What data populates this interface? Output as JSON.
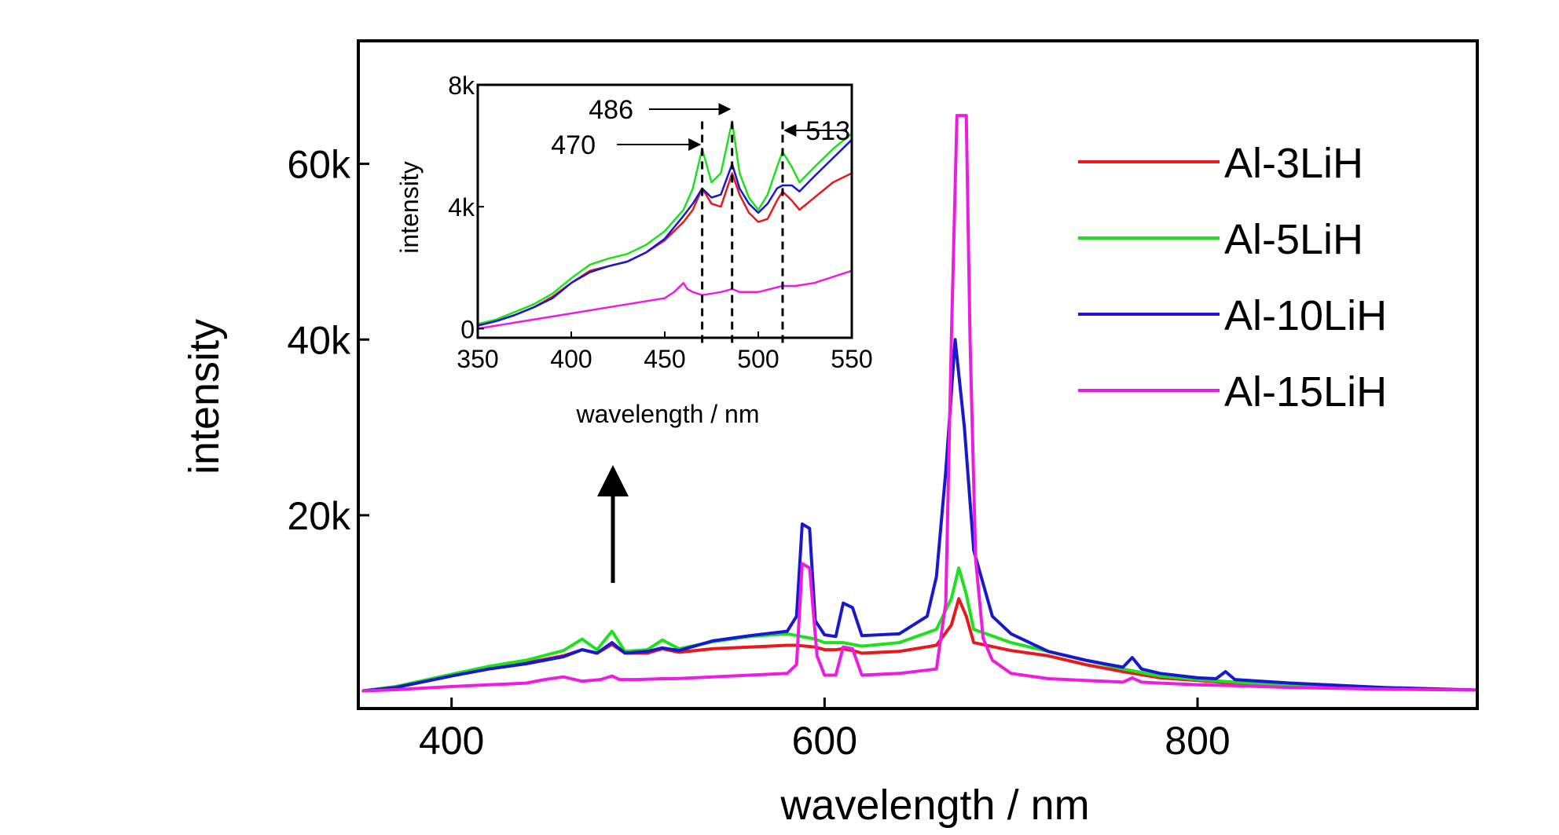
{
  "chart_data": [
    {
      "type": "line",
      "xlabel": "wavelength / nm",
      "ylabel": "intensity",
      "xlim": [
        350,
        950
      ],
      "ylim": [
        -2000,
        74000
      ],
      "xticks": [
        400,
        600,
        800
      ],
      "xtick_labels": [
        "400",
        "600",
        "800"
      ],
      "yticks": [
        20000,
        40000,
        60000
      ],
      "ytick_labels": [
        "20k",
        "40k",
        "60k"
      ],
      "grid": false,
      "legend_position": "top-right",
      "annotation": "upward arrow at ~483 nm pointing to the inset",
      "series": [
        {
          "name": "Al-3LiH",
          "color": "#e8191a",
          "x": [
            352,
            370,
            400,
            420,
            440,
            460,
            470,
            478,
            486,
            493,
            505,
            513,
            522,
            540,
            560,
            580,
            585,
            590,
            595,
            600,
            606,
            610,
            615,
            620,
            640,
            660,
            668,
            672,
            676,
            680,
            700,
            720,
            740,
            760,
            780,
            800,
            820,
            850,
            900,
            950
          ],
          "y": [
            0,
            400,
            1800,
            2600,
            3200,
            4000,
            4700,
            4300,
            5300,
            4300,
            4300,
            4800,
            4400,
            4800,
            5000,
            5200,
            5200,
            5100,
            5000,
            4700,
            4700,
            4800,
            4600,
            4300,
            4500,
            5200,
            7500,
            10500,
            8500,
            5500,
            4600,
            4000,
            3000,
            2200,
            1500,
            1200,
            900,
            600,
            300,
            100
          ]
        },
        {
          "name": "Al-5LiH",
          "color": "#1fe01f",
          "x": [
            352,
            370,
            400,
            420,
            440,
            460,
            470,
            478,
            486,
            493,
            505,
            513,
            522,
            540,
            560,
            580,
            585,
            590,
            595,
            600,
            606,
            610,
            615,
            620,
            640,
            660,
            668,
            672,
            676,
            680,
            700,
            720,
            740,
            760,
            780,
            800,
            820,
            850,
            900,
            950
          ],
          "y": [
            0,
            500,
            1900,
            2800,
            3500,
            4600,
            5900,
            4700,
            6800,
            4500,
            4700,
            5800,
            4800,
            5600,
            6200,
            6500,
            6300,
            6100,
            5900,
            5500,
            5500,
            5500,
            5300,
            5100,
            5500,
            7000,
            10500,
            14000,
            11000,
            7000,
            5500,
            4500,
            3500,
            2500,
            1700,
            1300,
            1000,
            700,
            300,
            100
          ]
        },
        {
          "name": "Al-10LiH",
          "color": "#1818d0",
          "x": [
            352,
            370,
            400,
            420,
            440,
            460,
            470,
            478,
            486,
            493,
            505,
            513,
            522,
            540,
            560,
            580,
            585,
            588,
            592,
            595,
            600,
            606,
            610,
            615,
            620,
            640,
            655,
            660,
            665,
            670,
            675,
            680,
            690,
            700,
            720,
            740,
            760,
            765,
            770,
            780,
            800,
            810,
            815,
            820,
            850,
            900,
            950
          ],
          "y": [
            0,
            400,
            1700,
            2500,
            3100,
            3900,
            4700,
            4300,
            5500,
            4300,
            4500,
            4900,
            4600,
            5700,
            6300,
            6800,
            8500,
            19000,
            18500,
            8000,
            6400,
            6200,
            10000,
            9500,
            6300,
            6500,
            8500,
            13000,
            25000,
            40000,
            30000,
            16000,
            8500,
            6500,
            4500,
            3500,
            2700,
            3800,
            2500,
            2000,
            1500,
            1400,
            2200,
            1300,
            900,
            400,
            100
          ]
        },
        {
          "name": "Al-15LiH",
          "color": "#ee1ce0",
          "x": [
            352,
            370,
            400,
            420,
            440,
            450,
            460,
            470,
            480,
            486,
            490,
            500,
            513,
            520,
            540,
            560,
            580,
            585,
            588,
            592,
            596,
            600,
            606,
            610,
            615,
            620,
            640,
            660,
            665,
            668,
            671,
            676,
            678,
            681,
            685,
            690,
            700,
            720,
            740,
            760,
            765,
            770,
            780,
            800,
            820,
            850,
            900,
            950
          ],
          "y": [
            0,
            150,
            500,
            700,
            900,
            1300,
            1600,
            1100,
            1300,
            1700,
            1300,
            1300,
            1400,
            1400,
            1600,
            1800,
            2000,
            3000,
            14500,
            14000,
            4000,
            1800,
            1800,
            5000,
            4800,
            1800,
            2000,
            2500,
            10000,
            40000,
            65500,
            65500,
            40000,
            15000,
            6000,
            3500,
            2000,
            1400,
            1200,
            1000,
            1500,
            1000,
            900,
            700,
            600,
            400,
            200,
            100
          ]
        }
      ]
    },
    {
      "type": "line",
      "xlabel": "wavelength / nm",
      "ylabel": "intensity",
      "xlim": [
        350,
        550
      ],
      "ylim": [
        -300,
        8000
      ],
      "xticks": [
        350,
        400,
        450,
        500,
        550
      ],
      "xtick_labels": [
        "350",
        "400",
        "450",
        "500",
        "550"
      ],
      "yticks": [
        0,
        4000,
        8000
      ],
      "ytick_labels": [
        "0",
        "4k",
        "8k"
      ],
      "grid": false,
      "markers": [
        {
          "label": "470",
          "x": 470
        },
        {
          "label": "486",
          "x": 486
        },
        {
          "label": "513",
          "x": 513
        }
      ],
      "series": [
        {
          "name": "Al-3LiH",
          "color": "#e8191a",
          "x": [
            350,
            360,
            370,
            380,
            390,
            400,
            410,
            420,
            430,
            440,
            450,
            460,
            465,
            470,
            475,
            480,
            486,
            490,
            495,
            500,
            505,
            510,
            513,
            518,
            522,
            530,
            540,
            550
          ],
          "y": [
            100,
            250,
            450,
            700,
            1050,
            1500,
            1900,
            2050,
            2200,
            2500,
            2900,
            3500,
            3900,
            4600,
            4100,
            4000,
            5100,
            4400,
            3800,
            3500,
            3600,
            4200,
            4500,
            4200,
            3900,
            4300,
            4800,
            5100
          ]
        },
        {
          "name": "Al-5LiH",
          "color": "#1fe01f",
          "x": [
            350,
            360,
            370,
            380,
            390,
            400,
            410,
            420,
            430,
            440,
            450,
            460,
            465,
            470,
            475,
            480,
            486,
            490,
            495,
            500,
            505,
            510,
            513,
            518,
            522,
            530,
            540,
            550
          ],
          "y": [
            150,
            300,
            550,
            800,
            1150,
            1650,
            2100,
            2300,
            2450,
            2750,
            3200,
            3900,
            4600,
            5900,
            4800,
            5100,
            6800,
            5100,
            4300,
            3900,
            4400,
            5300,
            5800,
            5300,
            4800,
            5300,
            5900,
            6400
          ]
        },
        {
          "name": "Al-10LiH",
          "color": "#1818d0",
          "x": [
            350,
            360,
            370,
            380,
            390,
            400,
            410,
            420,
            430,
            440,
            450,
            460,
            465,
            470,
            475,
            480,
            486,
            490,
            495,
            500,
            505,
            510,
            513,
            518,
            522,
            530,
            540,
            550
          ],
          "y": [
            100,
            250,
            450,
            700,
            1000,
            1500,
            1850,
            2050,
            2200,
            2500,
            2950,
            3700,
            4100,
            4600,
            4300,
            4400,
            5400,
            4600,
            4100,
            3800,
            4100,
            4600,
            4700,
            4700,
            4500,
            5000,
            5600,
            6200
          ]
        },
        {
          "name": "Al-15LiH",
          "color": "#ee1ce0",
          "x": [
            350,
            370,
            400,
            430,
            450,
            455,
            460,
            462,
            465,
            470,
            480,
            486,
            490,
            500,
            513,
            520,
            530,
            540,
            550
          ],
          "y": [
            0,
            200,
            500,
            800,
            1000,
            1200,
            1500,
            1300,
            1200,
            1100,
            1200,
            1300,
            1200,
            1200,
            1400,
            1400,
            1500,
            1700,
            1900
          ]
        }
      ]
    }
  ]
}
